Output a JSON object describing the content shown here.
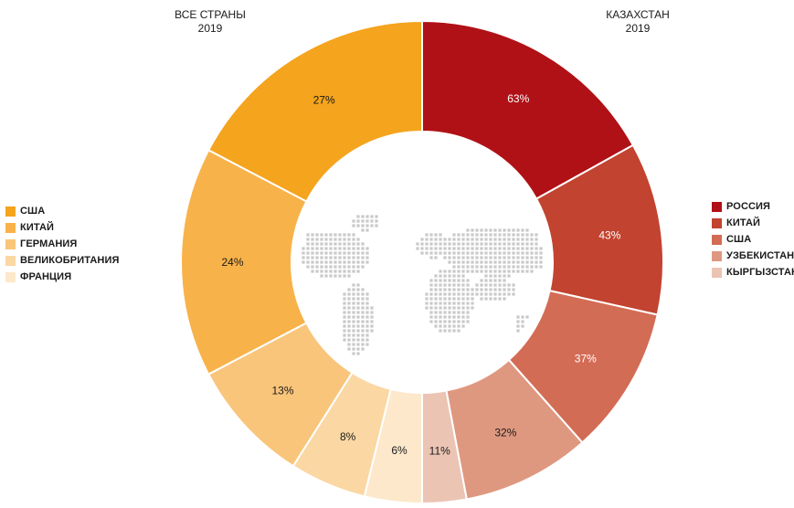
{
  "chart_data": [
    {
      "type": "pie",
      "style": "half-donut (left half of a shared ring)",
      "title": "ВСЕ СТРАНЫ",
      "subtitle": "2019",
      "categories": [
        "США",
        "КИТАЙ",
        "ГЕРМАНИЯ",
        "ВЕЛИКОБРИТАНИЯ",
        "ФРАНЦИЯ"
      ],
      "values": [
        27,
        24,
        13,
        8,
        6
      ],
      "labels": [
        "27%",
        "24%",
        "13%",
        "8%",
        "6%"
      ],
      "colors": [
        "#f4a41d",
        "#f8b24a",
        "#f9c57b",
        "#fbd7a3",
        "#fde8cc"
      ],
      "legend_position": "left"
    },
    {
      "type": "pie",
      "style": "half-donut (right half of a shared ring)",
      "title": "КАЗАХСТАН",
      "subtitle": "2019",
      "categories": [
        "РОССИЯ",
        "КИТАЙ",
        "США",
        "УЗБЕКИСТАН",
        "КЫРГЫЗСТАН"
      ],
      "values": [
        63,
        43,
        37,
        32,
        11
      ],
      "labels": [
        "63%",
        "43%",
        "37%",
        "32%",
        "11%"
      ],
      "colors": [
        "#b01116",
        "#c2432f",
        "#d36c55",
        "#df9880",
        "#ecc4b4"
      ],
      "legend_position": "right"
    }
  ]
}
